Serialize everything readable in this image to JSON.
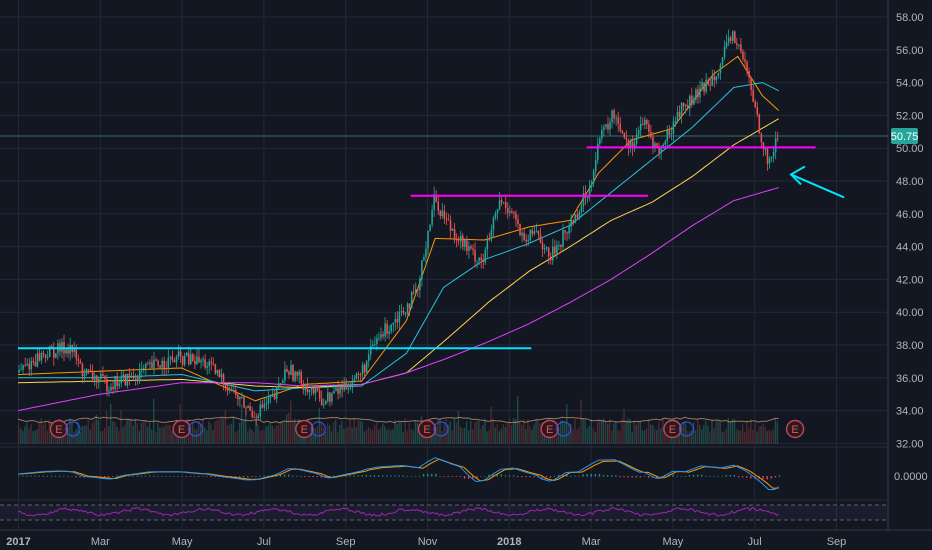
{
  "chart_data": {
    "type": "candlestick",
    "x_ticks": [
      "2017",
      "Mar",
      "May",
      "Jul",
      "Sep",
      "Nov",
      "2018",
      "Mar",
      "May",
      "Jul",
      "Sep"
    ],
    "y_ticks": [
      "58.00",
      "56.00",
      "54.00",
      "52.00",
      "50.00",
      "48.00",
      "46.00",
      "44.00",
      "42.00",
      "40.00",
      "38.00",
      "36.00",
      "34.00",
      "32.00"
    ],
    "ylim": [
      31.8,
      58.6
    ],
    "current_price": "50.75",
    "macd_zero_label": "0.0000",
    "earnings_marker": "E",
    "earnings_months": [
      1.0,
      4.0,
      7.0,
      10.0,
      13.0,
      16.0,
      19.0
    ],
    "earnings_count": 7,
    "price_keyframes": [
      [
        0,
        36.3
      ],
      [
        0.6,
        37.4
      ],
      [
        1.3,
        37.9
      ],
      [
        1.6,
        36.4
      ],
      [
        2.2,
        35.6
      ],
      [
        2.8,
        36.0
      ],
      [
        3.4,
        36.8
      ],
      [
        4.0,
        37.2
      ],
      [
        4.6,
        36.9
      ],
      [
        5.1,
        35.7
      ],
      [
        5.6,
        34.2
      ],
      [
        5.8,
        33.8
      ],
      [
        6.3,
        34.8
      ],
      [
        6.6,
        36.6
      ],
      [
        7.0,
        35.7
      ],
      [
        7.5,
        34.6
      ],
      [
        7.9,
        35.3
      ],
      [
        8.4,
        36.2
      ],
      [
        8.8,
        38.3
      ],
      [
        9.3,
        39.8
      ],
      [
        9.8,
        41.2
      ],
      [
        10.0,
        44.3
      ],
      [
        10.2,
        46.9
      ],
      [
        10.6,
        45.2
      ],
      [
        11.1,
        43.6
      ],
      [
        11.4,
        43.2
      ],
      [
        11.8,
        46.7
      ],
      [
        12.1,
        46.3
      ],
      [
        12.4,
        44.1
      ],
      [
        12.7,
        45.1
      ],
      [
        13.0,
        43.2
      ],
      [
        13.5,
        45.2
      ],
      [
        13.8,
        46.6
      ],
      [
        14.0,
        47.6
      ],
      [
        14.2,
        50.3
      ],
      [
        14.6,
        52.1
      ],
      [
        15.0,
        50.1
      ],
      [
        15.3,
        51.6
      ],
      [
        15.7,
        49.7
      ],
      [
        16.2,
        52.3
      ],
      [
        16.7,
        53.4
      ],
      [
        17.2,
        55.1
      ],
      [
        17.5,
        57.0
      ],
      [
        17.8,
        55.1
      ],
      [
        18.1,
        51.9
      ],
      [
        18.35,
        49.0
      ],
      [
        18.6,
        50.6
      ]
    ],
    "moving_averages": [
      {
        "color": "#ff9800",
        "values": [
          [
            0,
            36.2
          ],
          [
            2,
            36.4
          ],
          [
            4,
            36.6
          ],
          [
            5.8,
            34.6
          ],
          [
            7,
            35.6
          ],
          [
            8.4,
            35.8
          ],
          [
            9.5,
            39.5
          ],
          [
            10.2,
            44.5
          ],
          [
            11.4,
            44.4
          ],
          [
            12.5,
            45.2
          ],
          [
            13.5,
            45.6
          ],
          [
            14.2,
            48.5
          ],
          [
            15,
            50.5
          ],
          [
            16,
            51.2
          ],
          [
            17,
            54.5
          ],
          [
            17.6,
            55.6
          ],
          [
            18.2,
            53.2
          ],
          [
            18.6,
            52.3
          ]
        ]
      },
      {
        "color": "#26c6da",
        "values": [
          [
            0,
            36.0
          ],
          [
            2,
            36.0
          ],
          [
            4,
            36.2
          ],
          [
            5.8,
            35.2
          ],
          [
            7,
            35.4
          ],
          [
            8.4,
            35.5
          ],
          [
            9.5,
            37.5
          ],
          [
            10.4,
            41.5
          ],
          [
            11.4,
            43.2
          ],
          [
            12.5,
            44.2
          ],
          [
            13.5,
            45.3
          ],
          [
            14.5,
            47.3
          ],
          [
            15.5,
            49.3
          ],
          [
            16.5,
            51.3
          ],
          [
            17.5,
            53.7
          ],
          [
            18.2,
            54.0
          ],
          [
            18.6,
            53.5
          ]
        ]
      },
      {
        "color": "#ffd54f",
        "values": [
          [
            0,
            35.7
          ],
          [
            2,
            35.8
          ],
          [
            4,
            35.9
          ],
          [
            5.8,
            35.5
          ],
          [
            7,
            35.4
          ],
          [
            8.4,
            35.6
          ],
          [
            9.5,
            36.3
          ],
          [
            10.5,
            38.4
          ],
          [
            11.5,
            40.6
          ],
          [
            12.5,
            42.5
          ],
          [
            13.5,
            44.0
          ],
          [
            14.5,
            45.6
          ],
          [
            15.5,
            46.7
          ],
          [
            16.5,
            48.3
          ],
          [
            17.5,
            50.2
          ],
          [
            18.6,
            51.8
          ]
        ]
      },
      {
        "color": "#e040fb",
        "values": [
          [
            0,
            34.0
          ],
          [
            2,
            35.0
          ],
          [
            4,
            35.7
          ],
          [
            5.8,
            35.7
          ],
          [
            7,
            35.5
          ],
          [
            8.4,
            35.6
          ],
          [
            9.5,
            36.3
          ],
          [
            10.5,
            37.2
          ],
          [
            11.5,
            38.2
          ],
          [
            12.5,
            39.3
          ],
          [
            13.5,
            40.6
          ],
          [
            14.5,
            42.0
          ],
          [
            15.5,
            43.6
          ],
          [
            16.5,
            45.3
          ],
          [
            17.5,
            46.8
          ],
          [
            18.6,
            47.6
          ]
        ]
      }
    ],
    "levels": [
      {
        "color": "#00e5ff",
        "price": 37.8,
        "from_month": 0,
        "to_month": 12.55
      },
      {
        "color": "#ff00ff",
        "price": 47.1,
        "from_month": 9.6,
        "to_month": 15.4
      },
      {
        "color": "#ff00ff",
        "price": 50.05,
        "from_month": 13.9,
        "to_month": 19.5
      }
    ],
    "arrow": {
      "color": "#00e5ff",
      "tip_month": 18.9,
      "tip_price": 48.4,
      "tail_month": 20.2,
      "tail_price": 47.0
    }
  },
  "colors": {
    "background": "#131722",
    "grid": "#232837",
    "axis_text": "#b2b5be",
    "candle_up": "#26a69a",
    "candle_down": "#ef5350",
    "price_badge": "#26a69a"
  }
}
